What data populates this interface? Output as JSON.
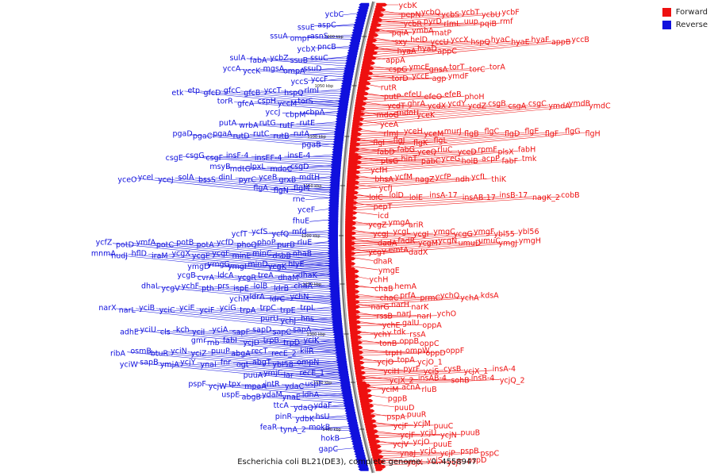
{
  "title": "Escherichia coli BL21(DE3), complete genome. - 0..4558947",
  "legend": [
    {
      "label": "Forward",
      "color": "#ee1010"
    },
    {
      "label": "Reverse",
      "color": "#1010dd"
    }
  ],
  "colors": {
    "forward": "#ee1010",
    "reverse": "#1010dd",
    "backbone": "#777777"
  },
  "tick_labels": [
    "1000 kbp",
    "1050 kbp",
    "1100 kbp",
    "1150 kbp",
    "1200 kbp",
    "1250 kbp",
    "1300 kbp",
    "1350 kbp",
    "1400 kbp"
  ],
  "forward_rows": [
    [
      "ycbK"
    ],
    [
      "pepN",
      "ycbQ",
      "ycbS",
      "ycbT",
      "ycbU",
      "ycbF"
    ],
    [
      "ycbR",
      "pyrD",
      "rlmL",
      "uup",
      "pqiB",
      "rmf"
    ],
    [
      "pqiA",
      "ymbA",
      "matP"
    ],
    [
      "sxy",
      "helD",
      "yccU",
      "yccX",
      "hspQ",
      "hyaC",
      "hyaE",
      "hyaF",
      "appB",
      "yccB"
    ],
    [
      "hyaA",
      "hyaD",
      "appC"
    ],
    [
      "appA"
    ],
    [
      "cspG",
      "ymcE",
      "gnsA",
      "torT",
      "torC",
      "torA"
    ],
    [
      "torD",
      "yccE",
      "agp",
      "ymdF"
    ],
    [
      "rutR"
    ],
    [
      "putP",
      "efeU",
      "efeO",
      "efeB",
      "phoH"
    ],
    [
      "ycdT",
      "ghrA",
      "ycdX",
      "ycdY",
      "ycdZ",
      "csgB",
      "csgA",
      "csgC",
      "ymdA",
      "ymdB",
      "ymdC"
    ],
    [
      "mdoG",
      "mdoH",
      "yceK"
    ],
    [
      "yceA"
    ],
    [
      "rlmJ",
      "yceH",
      "yceM",
      "murJ",
      "flgB",
      "flgC",
      "flgD",
      "flgE",
      "flgF",
      "flgG",
      "flgH"
    ],
    [
      "flgI",
      "flgJ",
      "flgK",
      "flgL"
    ],
    [
      "fabD",
      "fabG",
      "yceQ",
      "rluC",
      "yceD",
      "rpmF",
      "plsX",
      "fabH"
    ],
    [
      "ptsG",
      "hinT",
      "pabC",
      "yceG",
      "holB",
      "acpP",
      "fabF",
      "tmk"
    ],
    [
      "ycfH"
    ],
    [
      "bhsA",
      "ycfM",
      "nagZ",
      "ycfP",
      "ndh",
      "ycfL",
      "thiK"
    ],
    [
      "ycfJ"
    ],
    [
      "lolC",
      "lolD",
      "lolE",
      "insA-17",
      "insAB-17",
      "insB-17",
      "nagK_2",
      "cobB"
    ],
    [
      "pepT"
    ],
    [
      "icd"
    ],
    [
      "ycgZ",
      "ymgA",
      "ariR"
    ],
    [
      "ycgJ",
      "ycgL",
      "ycgI",
      "ymgC",
      "ycgG",
      "ymgF",
      "ybl55",
      "ybl56"
    ],
    [
      "dadA",
      "fadR",
      "ycgM",
      "ycgN",
      "umuD",
      "umuC",
      "ymgJ",
      "ymgH"
    ],
    [
      "ycgY",
      "emtA",
      "dadX"
    ],
    [
      "dhaR"
    ],
    [
      "ymgE"
    ],
    [
      "ychH"
    ],
    [
      "chaB",
      "hemA"
    ],
    [
      "chaC",
      "prfA",
      "prmC",
      "ychQ",
      "ychA",
      "kdsA"
    ],
    [
      "narG",
      "narH",
      "narK"
    ],
    [
      "rssB",
      "narJ",
      "narI",
      "ychO"
    ],
    [
      "ychE",
      "galU",
      "oppA"
    ],
    [
      "ychY",
      "tdk",
      "rssA"
    ],
    [
      "tonB",
      "oppB",
      "oppC"
    ],
    [
      "trpH",
      "ompW",
      "oppD",
      "oppF"
    ],
    [
      "ycjO",
      "topA",
      "ycjO_1"
    ],
    [
      "yciH",
      "pyrF",
      "yciS",
      "cysB",
      "ycjX_1",
      "insA-4"
    ],
    [
      "ycjX_2",
      "insAB-4",
      "sohB",
      "insB-4",
      "ycjQ_2"
    ],
    [
      "yciM",
      "acnA",
      "rluB"
    ],
    [
      "pgpB"
    ],
    [
      "puuD"
    ],
    [
      "pspA",
      "puuR"
    ],
    [
      "ycjF",
      "ycjM",
      "puuC"
    ],
    [
      "ycjF",
      "ycjU",
      "ycjN",
      "puuB"
    ],
    [
      "ycjV",
      "ycjO",
      "puuE"
    ],
    [
      "ynaJ",
      "ycjG",
      "ycjP",
      "pspB",
      "pspC"
    ],
    [
      "ycjX",
      "ycjS",
      "ycjT",
      "pspD"
    ]
  ],
  "reverse_rows": [
    [
      "ycbC"
    ],
    [
      "aspC",
      "ssuE"
    ],
    [
      "asnS",
      "ompF",
      "ssuA"
    ],
    [
      "pncB",
      "ycbX"
    ],
    [
      "ssuC",
      "ssuB",
      "ycbZ",
      "fabA",
      "sulA"
    ],
    [
      "ssuD",
      "ompA",
      "mgsA",
      "yccK",
      "yccA"
    ],
    [
      "yccF",
      "yccS"
    ],
    [
      "rlmI",
      "hspQ",
      "yccT",
      "gfcB",
      "gfcC",
      "gfcD",
      "etp",
      "etk"
    ],
    [
      "torS",
      "yccM",
      "cspH",
      "gfcA",
      "torR"
    ],
    [
      "cbpA",
      "cbpM",
      "yccJ"
    ],
    [
      "rutE",
      "rutF",
      "rutG",
      "wrbA",
      "putA"
    ],
    [
      "rutA",
      "rutB",
      "rutC",
      "rutD",
      "pgaA",
      "pgaC",
      "pgaD"
    ],
    [
      "pgaB"
    ],
    [
      "insE-4",
      "insEF-4",
      "insF-4",
      "csgF",
      "csgG",
      "csgE"
    ],
    [
      "csgD",
      "mdoC",
      "lpxL",
      "mdtG",
      "msyB"
    ],
    [
      "mdtH",
      "grxB",
      "yceB",
      "pyrC",
      "dinI",
      "bssS",
      "solA",
      "yceJ",
      "yceI",
      "yceO"
    ],
    [
      "flgM",
      "flgN",
      "flgA"
    ],
    [
      "rne"
    ],
    [
      "yceF"
    ],
    [
      "fhuE"
    ],
    [
      "mfd",
      "ycfQ",
      "ycfS",
      "ycfT"
    ],
    [
      "rluE",
      "purB",
      "phoP",
      "phoQ",
      "ycfD",
      "potA",
      "potB",
      "potC",
      "ymfA",
      "potD",
      "ycfZ"
    ],
    [
      "nhaB",
      "dsbB",
      "minC",
      "minE",
      "ycgF",
      "ycgE",
      "ycgX",
      "iraM",
      "hflD",
      "nudJ",
      "mnmA"
    ],
    [
      "hlyE",
      "ycgK",
      "minD",
      "ymgI",
      "ymgG",
      "ymgD"
    ],
    [
      "dhaK",
      "dhaM",
      "treA",
      "ycgR",
      "ldcA",
      "cvrA",
      "ycgB"
    ],
    [
      "chaA",
      "ldrB",
      "lolB",
      "ispE",
      "prs",
      "pth",
      "ychF",
      "ycgV",
      "dhaL"
    ],
    [
      "ychN",
      "ldrC",
      "ldrA",
      "ychM"
    ],
    [
      "trpL",
      "trpE",
      "trpC",
      "trpA",
      "yciG",
      "yciF",
      "yciE",
      "yciC",
      "yciB",
      "narL",
      "narX"
    ],
    [
      "hns",
      "ychJ",
      "purU"
    ],
    [
      "sapA",
      "sapC",
      "sapD",
      "sapF",
      "yciA",
      "yciI",
      "kch",
      "cls",
      "yciU",
      "adhE"
    ],
    [
      "yciK",
      "trpD",
      "trpB",
      "ycjD",
      "fabI",
      "rnb",
      "gmr"
    ],
    [
      "kilR",
      "recE_2",
      "recT",
      "abgA",
      "puuP",
      "yciZ",
      "yciN",
      "btuR",
      "osmB",
      "ribA"
    ],
    [
      "ompN",
      "ybl58",
      "abgT",
      "ogt",
      "fnr",
      "ynaI",
      "ycjY",
      "ymjA",
      "sapB",
      "yciW"
    ],
    [
      "recE_1",
      "lar",
      "ymjC",
      "puuA"
    ],
    [
      "uspF",
      "ydaC",
      "intR",
      "mpaA",
      "tpx",
      "ycjW",
      "pspF"
    ],
    [
      "ldhA",
      "ynaE",
      "ydaM",
      "abgB",
      "uspE"
    ],
    [
      "ydaF",
      "ydaQ",
      "ttcA"
    ],
    [
      "hsU",
      "ydbK",
      "pinR"
    ],
    [
      "mokB",
      "tynA_2",
      "feaR"
    ],
    [
      "hokB"
    ],
    [
      "gapC"
    ]
  ]
}
